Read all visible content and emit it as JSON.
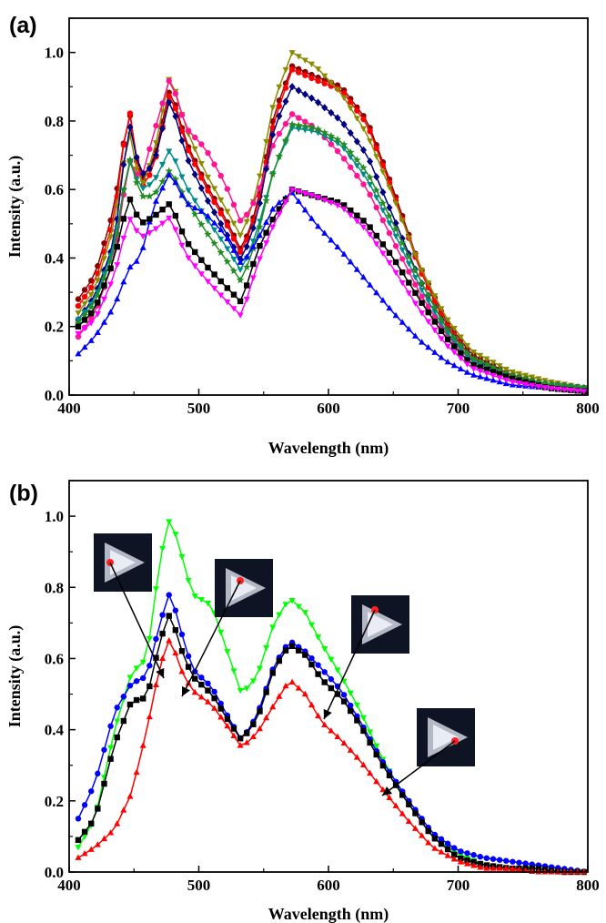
{
  "chart_data": [
    {
      "type": "line",
      "panel_label": "(a)",
      "xlabel": "Wavelength (nm)",
      "ylabel": "Intensity (a.u.)",
      "xlim": [
        400,
        800
      ],
      "ylim": [
        0.0,
        1.1
      ],
      "xticks": [
        "400",
        "500",
        "600",
        "700",
        "800"
      ],
      "yticks": [
        "0.0",
        "0.2",
        "0.4",
        "0.6",
        "0.8",
        "1.0"
      ],
      "grid": false,
      "legend": "none",
      "series": [
        {
          "color": "#8b0000",
          "marker": "circle",
          "x": [
            407,
            420,
            435,
            446,
            455,
            465,
            478,
            490,
            505,
            520,
            533,
            545,
            558,
            572,
            590,
            610,
            630,
            650,
            670,
            690,
            710,
            740,
            770,
            800
          ],
          "y": [
            0.28,
            0.35,
            0.55,
            0.84,
            0.62,
            0.68,
            0.9,
            0.74,
            0.62,
            0.52,
            0.42,
            0.55,
            0.82,
            0.96,
            0.93,
            0.9,
            0.8,
            0.6,
            0.38,
            0.22,
            0.12,
            0.06,
            0.03,
            0.02
          ]
        },
        {
          "color": "#ff0000",
          "marker": "circle",
          "x": [
            407,
            420,
            435,
            446,
            455,
            465,
            478,
            490,
            505,
            520,
            533,
            545,
            558,
            572,
            590,
            610,
            630,
            650,
            670,
            690,
            710,
            740,
            770,
            800
          ],
          "y": [
            0.26,
            0.33,
            0.52,
            0.85,
            0.6,
            0.66,
            0.89,
            0.73,
            0.61,
            0.51,
            0.41,
            0.54,
            0.8,
            0.95,
            0.92,
            0.89,
            0.79,
            0.59,
            0.37,
            0.21,
            0.11,
            0.05,
            0.03,
            0.02
          ]
        },
        {
          "color": "#8b8b00",
          "marker": "triangle-down",
          "x": [
            407,
            420,
            435,
            446,
            455,
            465,
            478,
            490,
            505,
            520,
            533,
            545,
            558,
            572,
            590,
            610,
            630,
            650,
            670,
            690,
            710,
            740,
            770,
            800
          ],
          "y": [
            0.24,
            0.31,
            0.5,
            0.78,
            0.6,
            0.7,
            0.94,
            0.78,
            0.65,
            0.55,
            0.46,
            0.6,
            0.86,
            1.0,
            0.96,
            0.88,
            0.76,
            0.58,
            0.38,
            0.23,
            0.13,
            0.07,
            0.04,
            0.02
          ]
        },
        {
          "color": "#ff1493",
          "marker": "circle",
          "x": [
            407,
            420,
            435,
            446,
            455,
            465,
            478,
            490,
            505,
            520,
            533,
            545,
            558,
            572,
            590,
            610,
            630,
            650,
            670,
            690,
            710,
            740,
            770,
            800
          ],
          "y": [
            0.17,
            0.24,
            0.4,
            0.69,
            0.62,
            0.76,
            0.93,
            0.78,
            0.72,
            0.62,
            0.5,
            0.58,
            0.74,
            0.82,
            0.78,
            0.7,
            0.6,
            0.45,
            0.3,
            0.18,
            0.1,
            0.05,
            0.02,
            0.01
          ]
        },
        {
          "color": "#000080",
          "marker": "diamond",
          "x": [
            407,
            420,
            435,
            446,
            455,
            465,
            478,
            490,
            505,
            520,
            533,
            545,
            558,
            572,
            590,
            610,
            630,
            650,
            670,
            690,
            710,
            740,
            770,
            800
          ],
          "y": [
            0.22,
            0.29,
            0.45,
            0.8,
            0.64,
            0.67,
            0.87,
            0.7,
            0.58,
            0.48,
            0.39,
            0.52,
            0.78,
            0.9,
            0.86,
            0.8,
            0.7,
            0.52,
            0.34,
            0.2,
            0.11,
            0.05,
            0.03,
            0.02
          ]
        },
        {
          "color": "#008b8b",
          "marker": "triangle-down",
          "x": [
            407,
            420,
            435,
            446,
            455,
            465,
            478,
            490,
            505,
            520,
            533,
            545,
            558,
            572,
            590,
            610,
            630,
            650,
            670,
            690,
            710,
            740,
            770,
            800
          ],
          "y": [
            0.22,
            0.28,
            0.44,
            0.69,
            0.6,
            0.62,
            0.72,
            0.61,
            0.52,
            0.44,
            0.36,
            0.48,
            0.66,
            0.78,
            0.77,
            0.73,
            0.63,
            0.48,
            0.32,
            0.19,
            0.1,
            0.05,
            0.03,
            0.02
          ]
        },
        {
          "color": "#228b22",
          "marker": "star",
          "x": [
            407,
            420,
            435,
            446,
            455,
            465,
            478,
            490,
            505,
            520,
            533,
            545,
            558,
            572,
            590,
            610,
            630,
            650,
            670,
            690,
            710,
            740,
            770,
            800
          ],
          "y": [
            0.21,
            0.27,
            0.42,
            0.7,
            0.58,
            0.58,
            0.66,
            0.57,
            0.48,
            0.4,
            0.33,
            0.46,
            0.66,
            0.79,
            0.78,
            0.74,
            0.65,
            0.5,
            0.34,
            0.2,
            0.11,
            0.06,
            0.03,
            0.02
          ]
        },
        {
          "color": "#0000ff",
          "marker": "triangle-up",
          "x": [
            407,
            420,
            435,
            446,
            455,
            465,
            478,
            490,
            505,
            520,
            533,
            545,
            558,
            572,
            590,
            610,
            630,
            650,
            670,
            690,
            710,
            740,
            770,
            800
          ],
          "y": [
            0.12,
            0.17,
            0.26,
            0.37,
            0.4,
            0.55,
            0.65,
            0.56,
            0.53,
            0.47,
            0.38,
            0.45,
            0.55,
            0.59,
            0.5,
            0.42,
            0.33,
            0.24,
            0.16,
            0.1,
            0.06,
            0.03,
            0.02,
            0.01
          ]
        },
        {
          "color": "#000000",
          "marker": "square",
          "x": [
            407,
            420,
            435,
            446,
            455,
            465,
            478,
            490,
            505,
            520,
            533,
            545,
            558,
            572,
            590,
            610,
            630,
            650,
            670,
            690,
            710,
            740,
            770,
            800
          ],
          "y": [
            0.2,
            0.25,
            0.4,
            0.58,
            0.5,
            0.52,
            0.56,
            0.45,
            0.38,
            0.32,
            0.27,
            0.42,
            0.52,
            0.6,
            0.58,
            0.56,
            0.5,
            0.4,
            0.28,
            0.17,
            0.09,
            0.05,
            0.02,
            0.01
          ]
        },
        {
          "color": "#ff00ff",
          "marker": "triangle-down",
          "x": [
            407,
            420,
            435,
            446,
            455,
            465,
            478,
            490,
            505,
            520,
            533,
            545,
            558,
            572,
            590,
            610,
            630,
            650,
            670,
            690,
            710,
            740,
            770,
            800
          ],
          "y": [
            0.18,
            0.22,
            0.35,
            0.52,
            0.46,
            0.48,
            0.52,
            0.41,
            0.34,
            0.28,
            0.23,
            0.38,
            0.5,
            0.6,
            0.58,
            0.55,
            0.48,
            0.37,
            0.25,
            0.15,
            0.08,
            0.04,
            0.02,
            0.01
          ]
        }
      ]
    },
    {
      "type": "line",
      "panel_label": "(b)",
      "xlabel": "Wavelength (nm)",
      "ylabel": "Intensity (a.u.)",
      "xlim": [
        400,
        800
      ],
      "ylim": [
        0.0,
        1.1
      ],
      "xticks": [
        "400",
        "500",
        "600",
        "700",
        "800"
      ],
      "yticks": [
        "0.0",
        "0.2",
        "0.4",
        "0.6",
        "0.8",
        "1.0"
      ],
      "grid": false,
      "legend": "none",
      "series": [
        {
          "color": "#00ff00",
          "marker": "triangle-down",
          "x": [
            407,
            420,
            435,
            448,
            460,
            470,
            478,
            486,
            495,
            510,
            522,
            533,
            545,
            558,
            570,
            582,
            595,
            610,
            625,
            640,
            660,
            680,
            700,
            720,
            740,
            760,
            780,
            800
          ],
          "y": [
            0.07,
            0.15,
            0.4,
            0.56,
            0.6,
            0.88,
            1.0,
            0.9,
            0.78,
            0.75,
            0.62,
            0.5,
            0.55,
            0.7,
            0.77,
            0.73,
            0.64,
            0.55,
            0.45,
            0.33,
            0.2,
            0.1,
            0.05,
            0.02,
            0.01,
            0.01,
            0.0,
            0.0
          ]
        },
        {
          "color": "#0000ff",
          "marker": "circle",
          "x": [
            407,
            420,
            435,
            448,
            460,
            470,
            478,
            486,
            495,
            510,
            522,
            533,
            545,
            558,
            570,
            582,
            595,
            610,
            625,
            640,
            660,
            680,
            700,
            720,
            740,
            760,
            780,
            800
          ],
          "y": [
            0.15,
            0.25,
            0.45,
            0.53,
            0.55,
            0.7,
            0.79,
            0.68,
            0.57,
            0.52,
            0.44,
            0.37,
            0.44,
            0.58,
            0.65,
            0.62,
            0.57,
            0.51,
            0.42,
            0.32,
            0.21,
            0.11,
            0.06,
            0.04,
            0.03,
            0.02,
            0.01,
            0.0
          ]
        },
        {
          "color": "#000000",
          "marker": "square",
          "x": [
            407,
            420,
            435,
            448,
            460,
            470,
            478,
            486,
            495,
            510,
            522,
            533,
            545,
            558,
            570,
            582,
            595,
            610,
            625,
            640,
            660,
            680,
            700,
            720,
            740,
            760,
            780,
            800
          ],
          "y": [
            0.09,
            0.15,
            0.36,
            0.48,
            0.49,
            0.65,
            0.73,
            0.63,
            0.55,
            0.5,
            0.43,
            0.37,
            0.43,
            0.57,
            0.64,
            0.61,
            0.54,
            0.49,
            0.41,
            0.31,
            0.2,
            0.1,
            0.04,
            0.02,
            0.01,
            0.01,
            0.0,
            0.0
          ]
        },
        {
          "color": "#ff0000",
          "marker": "triangle-up",
          "x": [
            407,
            420,
            435,
            448,
            460,
            470,
            478,
            486,
            495,
            510,
            522,
            533,
            545,
            558,
            570,
            582,
            595,
            610,
            625,
            640,
            660,
            680,
            700,
            720,
            740,
            760,
            780,
            800
          ],
          "y": [
            0.04,
            0.07,
            0.12,
            0.22,
            0.4,
            0.58,
            0.66,
            0.57,
            0.51,
            0.47,
            0.41,
            0.35,
            0.39,
            0.47,
            0.54,
            0.5,
            0.42,
            0.37,
            0.31,
            0.24,
            0.15,
            0.07,
            0.03,
            0.01,
            0.01,
            0.0,
            0.0,
            0.0
          ]
        }
      ]
    }
  ]
}
